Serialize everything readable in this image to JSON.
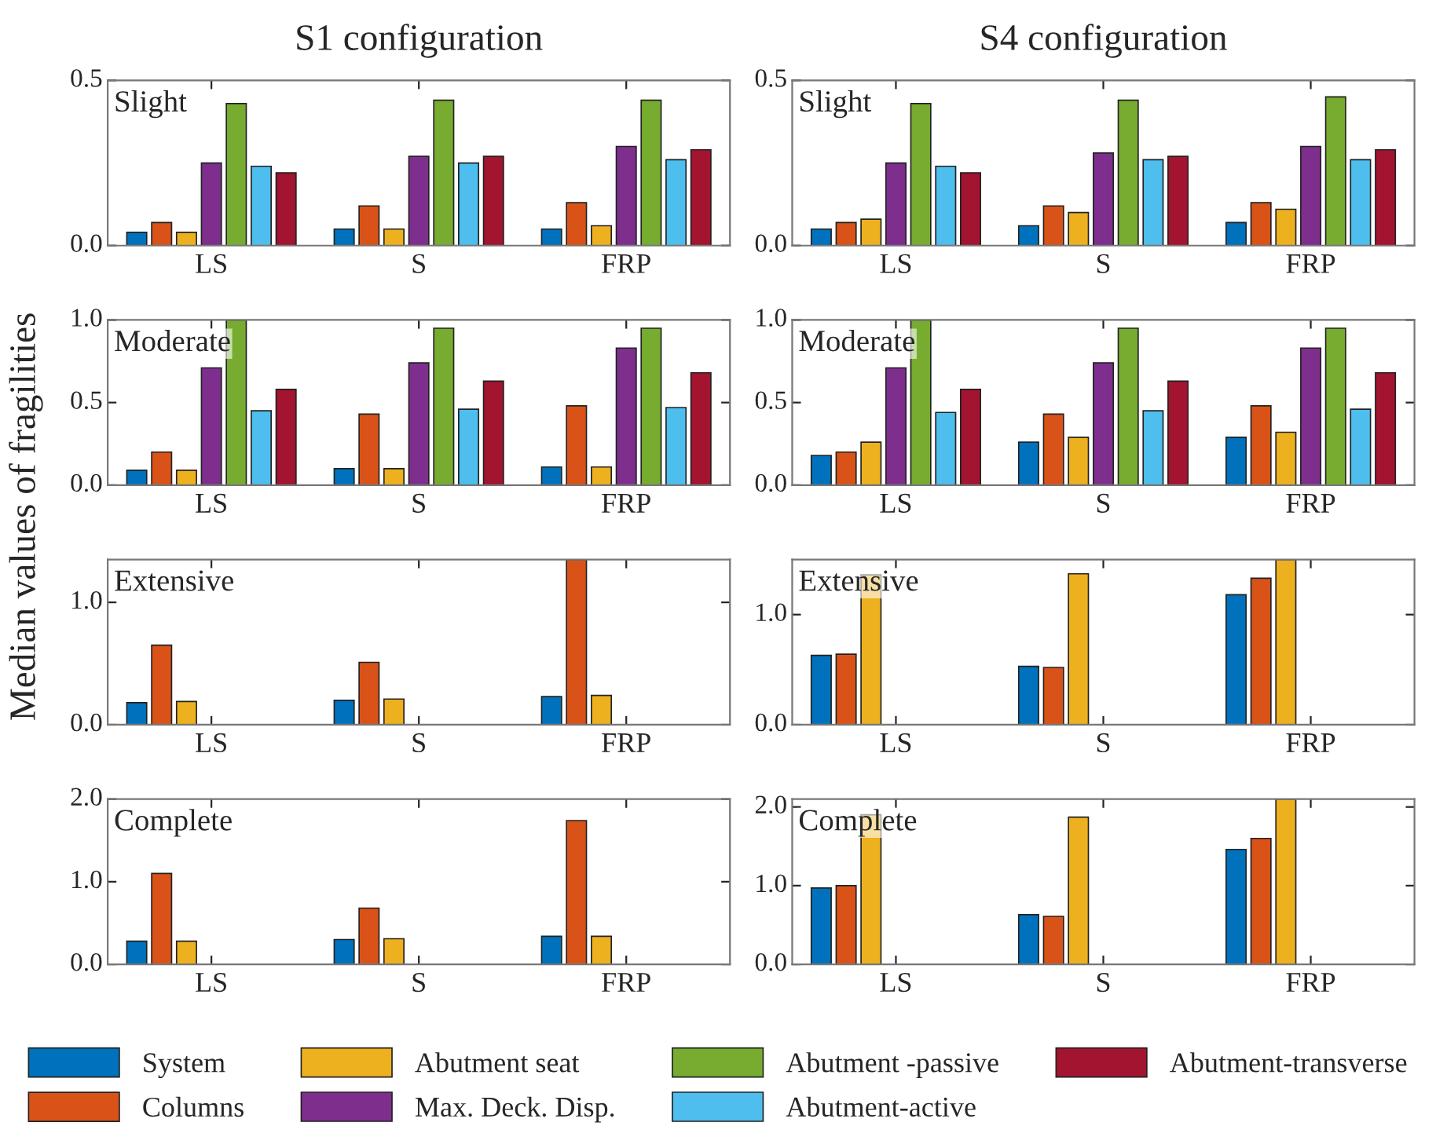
{
  "chart_data": [
    {
      "type": "bar",
      "title": "S1 configuration",
      "annotations": [
        "Slight"
      ],
      "categories": [
        "LS",
        "S",
        "FRP"
      ],
      "ylim": [
        0,
        0.5
      ],
      "yticks": [
        {
          "value": 0,
          "label": "0.0"
        },
        {
          "value": 0.5,
          "label": "0.5"
        }
      ],
      "legend": "bottom",
      "series": [
        {
          "name": "System",
          "color": "#0072bd",
          "values": [
            0.04,
            0.05,
            0.05
          ]
        },
        {
          "name": "Columns",
          "color": "#d95319",
          "values": [
            0.07,
            0.12,
            0.13
          ]
        },
        {
          "name": "Abutment seat",
          "color": "#edb120",
          "values": [
            0.04,
            0.05,
            0.06
          ]
        },
        {
          "name": "Max. Deck. Disp.",
          "color": "#7e2f8e",
          "values": [
            0.25,
            0.27,
            0.3
          ]
        },
        {
          "name": "Abutment -passive",
          "color": "#77ac30",
          "values": [
            0.43,
            0.44,
            0.44
          ]
        },
        {
          "name": "Abutment-active",
          "color": "#4dbeee",
          "values": [
            0.24,
            0.25,
            0.26
          ]
        },
        {
          "name": "Abutment-transverse",
          "color": "#a2142f",
          "values": [
            0.22,
            0.27,
            0.29
          ]
        }
      ]
    },
    {
      "type": "bar",
      "title": "S4 configuration",
      "annotations": [
        "Slight"
      ],
      "categories": [
        "LS",
        "S",
        "FRP"
      ],
      "ylim": [
        0,
        0.5
      ],
      "yticks": [
        {
          "value": 0,
          "label": "0.0"
        },
        {
          "value": 0.5,
          "label": "0.5"
        }
      ],
      "series": [
        {
          "color": "#0072bd",
          "values": [
            0.05,
            0.06,
            0.07
          ]
        },
        {
          "color": "#d95319",
          "values": [
            0.07,
            0.12,
            0.13
          ]
        },
        {
          "color": "#edb120",
          "values": [
            0.08,
            0.1,
            0.11
          ]
        },
        {
          "color": "#7e2f8e",
          "values": [
            0.25,
            0.28,
            0.3
          ]
        },
        {
          "color": "#77ac30",
          "values": [
            0.43,
            0.44,
            0.45
          ]
        },
        {
          "color": "#4dbeee",
          "values": [
            0.24,
            0.26,
            0.26
          ]
        },
        {
          "color": "#a2142f",
          "values": [
            0.22,
            0.27,
            0.29
          ]
        }
      ]
    },
    {
      "type": "bar",
      "ylabel": "Median values of fragilities",
      "annotations": [
        "Moderate"
      ],
      "categories": [
        "LS",
        "S",
        "FRP"
      ],
      "ylim": [
        0,
        1.0
      ],
      "yticks": [
        {
          "value": 0,
          "label": "0.0"
        },
        {
          "value": 0.5,
          "label": "0.5"
        },
        {
          "value": 1.0,
          "label": "1.0"
        }
      ],
      "series": [
        {
          "color": "#0072bd",
          "values": [
            0.09,
            0.1,
            0.11
          ]
        },
        {
          "color": "#d95319",
          "values": [
            0.2,
            0.43,
            0.48
          ]
        },
        {
          "color": "#edb120",
          "values": [
            0.09,
            0.1,
            0.11
          ]
        },
        {
          "color": "#7e2f8e",
          "values": [
            0.71,
            0.74,
            0.83
          ]
        },
        {
          "color": "#77ac30",
          "values": [
            1.0,
            0.95,
            0.95
          ]
        },
        {
          "color": "#4dbeee",
          "values": [
            0.45,
            0.46,
            0.47
          ]
        },
        {
          "color": "#a2142f",
          "values": [
            0.58,
            0.63,
            0.68
          ]
        }
      ]
    },
    {
      "type": "bar",
      "annotations": [
        "Moderate"
      ],
      "categories": [
        "LS",
        "S",
        "FRP"
      ],
      "ylim": [
        0,
        1.0
      ],
      "yticks": [
        {
          "value": 0,
          "label": "0.0"
        },
        {
          "value": 0.5,
          "label": "0.5"
        },
        {
          "value": 1.0,
          "label": "1.0"
        }
      ],
      "series": [
        {
          "color": "#0072bd",
          "values": [
            0.18,
            0.26,
            0.29
          ]
        },
        {
          "color": "#d95319",
          "values": [
            0.2,
            0.43,
            0.48
          ]
        },
        {
          "color": "#edb120",
          "values": [
            0.26,
            0.29,
            0.32
          ]
        },
        {
          "color": "#7e2f8e",
          "values": [
            0.71,
            0.74,
            0.83
          ]
        },
        {
          "color": "#77ac30",
          "values": [
            1.0,
            0.95,
            0.95
          ]
        },
        {
          "color": "#4dbeee",
          "values": [
            0.44,
            0.45,
            0.46
          ]
        },
        {
          "color": "#a2142f",
          "values": [
            0.58,
            0.63,
            0.68
          ]
        }
      ]
    },
    {
      "type": "bar",
      "annotations": [
        "Extensive"
      ],
      "categories": [
        "LS",
        "S",
        "FRP"
      ],
      "ylim": [
        0,
        1.35
      ],
      "yticks": [
        {
          "value": 0,
          "label": "0.0"
        },
        {
          "value": 1.0,
          "label": "1.0"
        }
      ],
      "series": [
        {
          "color": "#0072bd",
          "values": [
            0.18,
            0.2,
            0.23
          ]
        },
        {
          "color": "#d95319",
          "values": [
            0.65,
            0.51,
            1.35
          ]
        },
        {
          "color": "#edb120",
          "values": [
            0.19,
            0.21,
            0.24
          ]
        },
        {
          "color": "#7e2f8e",
          "values": [
            null,
            null,
            null
          ]
        },
        {
          "color": "#77ac30",
          "values": [
            null,
            null,
            null
          ]
        },
        {
          "color": "#4dbeee",
          "values": [
            null,
            null,
            null
          ]
        },
        {
          "color": "#a2142f",
          "values": [
            null,
            null,
            null
          ]
        }
      ]
    },
    {
      "type": "bar",
      "annotations": [
        "Extensive"
      ],
      "categories": [
        "LS",
        "S",
        "FRP"
      ],
      "ylim": [
        0,
        1.5
      ],
      "yticks": [
        {
          "value": 0,
          "label": "0.0"
        },
        {
          "value": 1.0,
          "label": "1.0"
        }
      ],
      "series": [
        {
          "color": "#0072bd",
          "values": [
            0.63,
            0.53,
            1.18
          ]
        },
        {
          "color": "#d95319",
          "values": [
            0.64,
            0.52,
            1.33
          ]
        },
        {
          "color": "#edb120",
          "values": [
            1.36,
            1.37,
            1.5
          ]
        },
        {
          "color": "#7e2f8e",
          "values": [
            null,
            null,
            null
          ]
        },
        {
          "color": "#77ac30",
          "values": [
            null,
            null,
            null
          ]
        },
        {
          "color": "#4dbeee",
          "values": [
            null,
            null,
            null
          ]
        },
        {
          "color": "#a2142f",
          "values": [
            null,
            null,
            null
          ]
        }
      ]
    },
    {
      "type": "bar",
      "annotations": [
        "Complete"
      ],
      "categories": [
        "LS",
        "S",
        "FRP"
      ],
      "ylim": [
        0,
        2.0
      ],
      "yticks": [
        {
          "value": 0,
          "label": "0.0"
        },
        {
          "value": 1.0,
          "label": "1.0"
        },
        {
          "value": 2.0,
          "label": "2.0"
        }
      ],
      "series": [
        {
          "color": "#0072bd",
          "values": [
            0.28,
            0.3,
            0.34
          ]
        },
        {
          "color": "#d95319",
          "values": [
            1.1,
            0.68,
            1.74
          ]
        },
        {
          "color": "#edb120",
          "values": [
            0.28,
            0.31,
            0.34
          ]
        },
        {
          "color": "#7e2f8e",
          "values": [
            null,
            null,
            null
          ]
        },
        {
          "color": "#77ac30",
          "values": [
            null,
            null,
            null
          ]
        },
        {
          "color": "#4dbeee",
          "values": [
            null,
            null,
            null
          ]
        },
        {
          "color": "#a2142f",
          "values": [
            null,
            null,
            null
          ]
        }
      ]
    },
    {
      "type": "bar",
      "annotations": [
        "Complete"
      ],
      "categories": [
        "LS",
        "S",
        "FRP"
      ],
      "ylim": [
        0,
        2.1
      ],
      "yticks": [
        {
          "value": 0,
          "label": "0.0"
        },
        {
          "value": 1.0,
          "label": "1.0"
        },
        {
          "value": 2.0,
          "label": "2.0"
        }
      ],
      "series": [
        {
          "color": "#0072bd",
          "values": [
            0.97,
            0.63,
            1.46
          ]
        },
        {
          "color": "#d95319",
          "values": [
            1.0,
            0.61,
            1.6
          ]
        },
        {
          "color": "#edb120",
          "values": [
            1.9,
            1.87,
            2.1
          ]
        },
        {
          "color": "#7e2f8e",
          "values": [
            null,
            null,
            null
          ]
        },
        {
          "color": "#77ac30",
          "values": [
            null,
            null,
            null
          ]
        },
        {
          "color": "#4dbeee",
          "values": [
            null,
            null,
            null
          ]
        },
        {
          "color": "#a2142f",
          "values": [
            null,
            null,
            null
          ]
        }
      ]
    }
  ]
}
